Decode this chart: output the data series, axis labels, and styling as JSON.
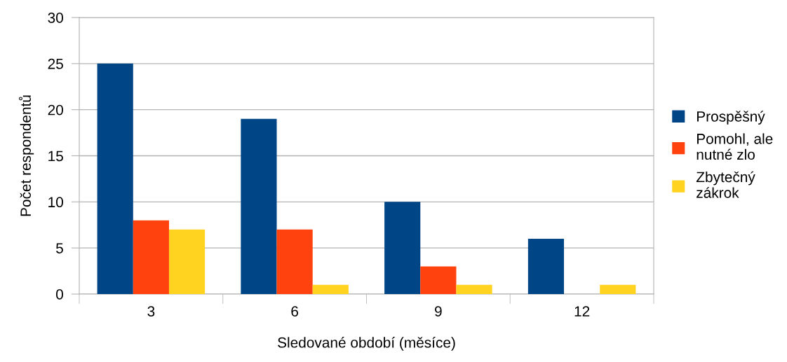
{
  "chart_data": {
    "type": "bar",
    "xlabel": "Sledované období (měsíce)",
    "ylabel": "Počet respondentů",
    "categories": [
      "3",
      "6",
      "9",
      "12"
    ],
    "series": [
      {
        "name": "Prospěšný",
        "color": "#004586",
        "values": [
          25,
          19,
          10,
          6
        ]
      },
      {
        "name": "Pomohl, ale nutné zlo",
        "color": "#ff420e",
        "values": [
          8,
          7,
          3,
          0
        ]
      },
      {
        "name": "Zbytečný zákrok",
        "color": "#ffd320",
        "values": [
          7,
          1,
          1,
          1
        ]
      }
    ],
    "ylim": [
      0,
      30
    ],
    "yticks": [
      0,
      5,
      10,
      15,
      20,
      25,
      30
    ],
    "grid": "y",
    "legend": "right"
  }
}
